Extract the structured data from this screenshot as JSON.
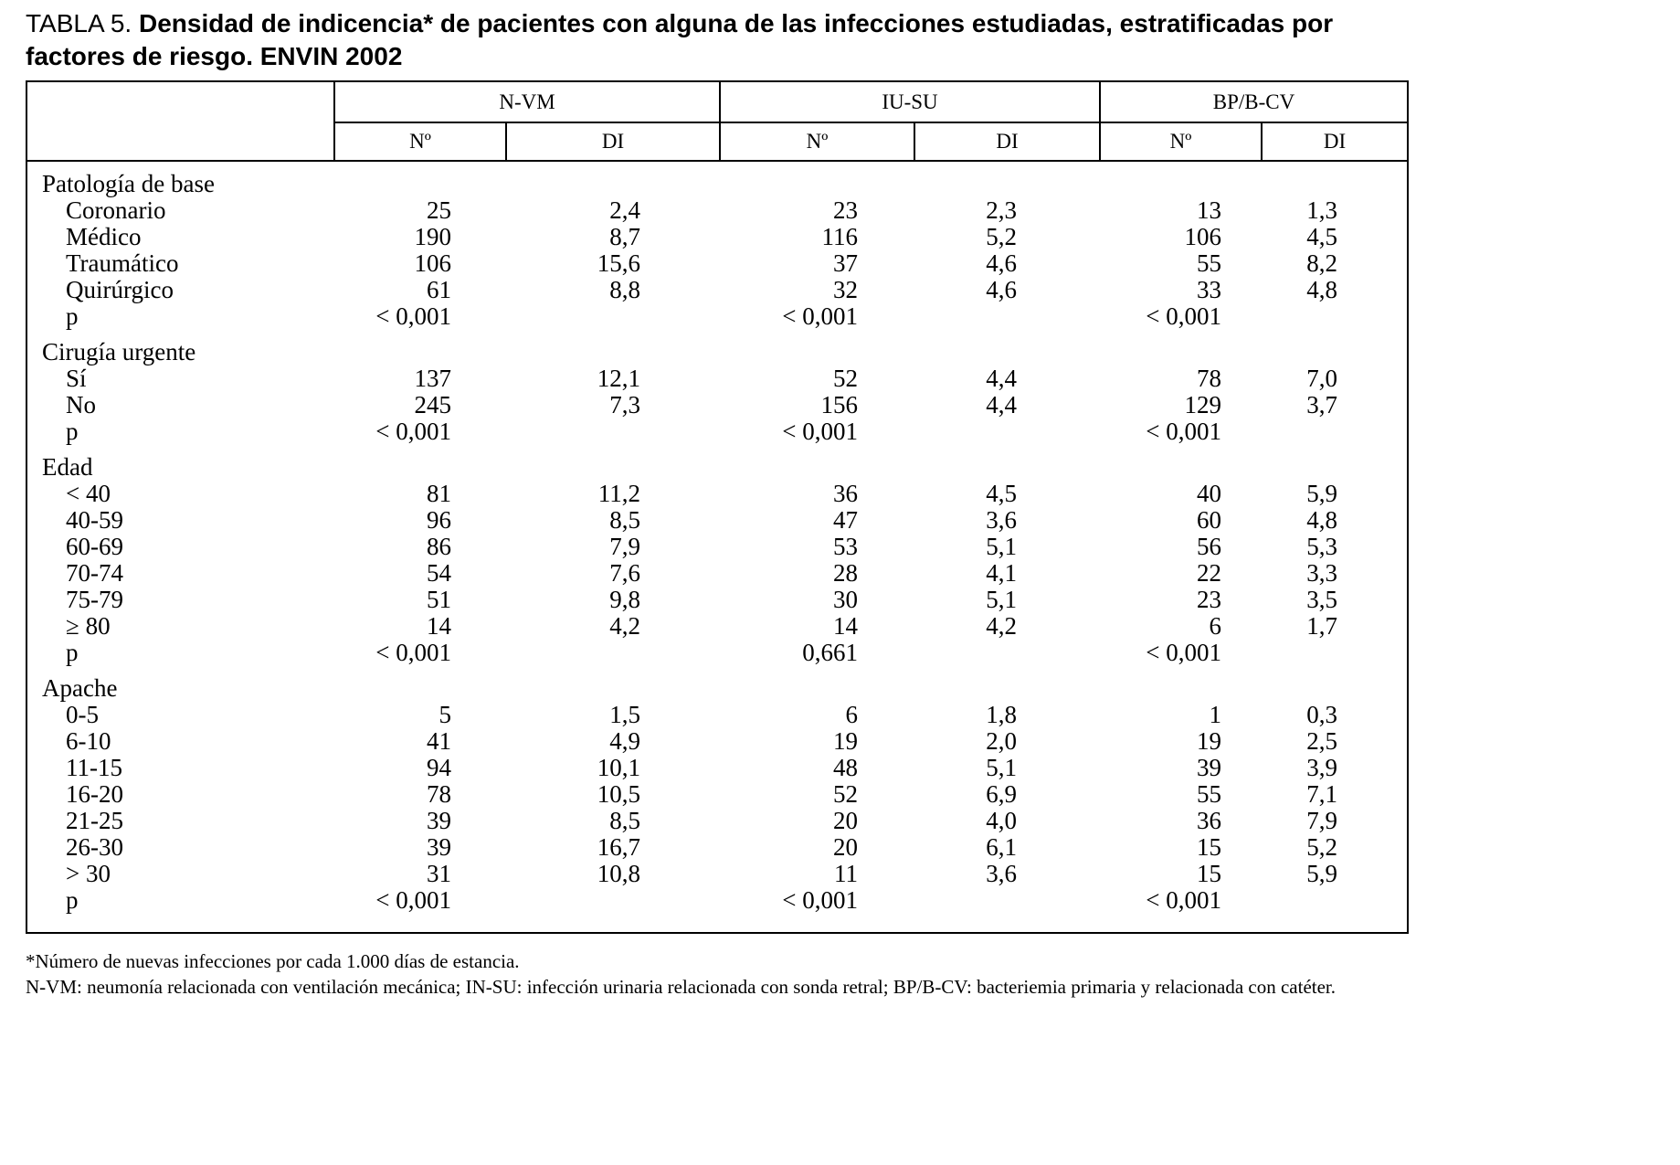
{
  "title": {
    "prefix": "TABLA 5. ",
    "text": "Densidad de indicencia* de pacientes con alguna de las infecciones estudiadas, estratificadas por factores de riesgo. ENVIN 2002"
  },
  "table": {
    "groups": [
      "N-VM",
      "IU-SU",
      "BP/B-CV"
    ],
    "sub": [
      "Nº",
      "DI"
    ],
    "rows": [
      {
        "label": "Patología de base"
      },
      {
        "label": "Coronario",
        "c": [
          "25",
          "2,4",
          "23",
          "2,3",
          "13",
          "1,3"
        ]
      },
      {
        "label": "Médico",
        "c": [
          "190",
          "8,7",
          "116",
          "5,2",
          "106",
          "4,5"
        ]
      },
      {
        "label": "Traumático",
        "c": [
          "106",
          "15,6",
          "37",
          "4,6",
          "55",
          "8,2"
        ]
      },
      {
        "label": "Quirúrgico",
        "c": [
          "61",
          "8,8",
          "32",
          "4,6",
          "33",
          "4,8"
        ]
      },
      {
        "label": "p",
        "c": [
          "< 0,001",
          "",
          "< 0,001",
          "",
          "< 0,001",
          ""
        ]
      },
      {
        "label": "Cirugía urgente"
      },
      {
        "label": "Sí",
        "c": [
          "137",
          "12,1",
          "52",
          "4,4",
          "78",
          "7,0"
        ]
      },
      {
        "label": "No",
        "c": [
          "245",
          "7,3",
          "156",
          "4,4",
          "129",
          "3,7"
        ]
      },
      {
        "label": "p",
        "c": [
          "< 0,001",
          "",
          "< 0,001",
          "",
          "< 0,001",
          ""
        ]
      },
      {
        "label": "Edad"
      },
      {
        "label": "< 40",
        "c": [
          "81",
          "11,2",
          "36",
          "4,5",
          "40",
          "5,9"
        ]
      },
      {
        "label": "40-59",
        "c": [
          "96",
          "8,5",
          "47",
          "3,6",
          "60",
          "4,8"
        ]
      },
      {
        "label": "60-69",
        "c": [
          "86",
          "7,9",
          "53",
          "5,1",
          "56",
          "5,3"
        ]
      },
      {
        "label": "70-74",
        "c": [
          "54",
          "7,6",
          "28",
          "4,1",
          "22",
          "3,3"
        ]
      },
      {
        "label": "75-79",
        "c": [
          "51",
          "9,8",
          "30",
          "5,1",
          "23",
          "3,5"
        ]
      },
      {
        "label": "≥ 80",
        "c": [
          "14",
          "4,2",
          "14",
          "4,2",
          "6",
          "1,7"
        ]
      },
      {
        "label": "p",
        "c": [
          "< 0,001",
          "",
          "0,661",
          "",
          "< 0,001",
          ""
        ]
      },
      {
        "label": "Apache"
      },
      {
        "label": "0-5",
        "c": [
          "5",
          "1,5",
          "6",
          "1,8",
          "1",
          "0,3"
        ]
      },
      {
        "label": "6-10",
        "c": [
          "41",
          "4,9",
          "19",
          "2,0",
          "19",
          "2,5"
        ]
      },
      {
        "label": "11-15",
        "c": [
          "94",
          "10,1",
          "48",
          "5,1",
          "39",
          "3,9"
        ]
      },
      {
        "label": "16-20",
        "c": [
          "78",
          "10,5",
          "52",
          "6,9",
          "55",
          "7,1"
        ]
      },
      {
        "label": "21-25",
        "c": [
          "39",
          "8,5",
          "20",
          "4,0",
          "36",
          "7,9"
        ]
      },
      {
        "label": "26-30",
        "c": [
          "39",
          "16,7",
          "20",
          "6,1",
          "15",
          "5,2"
        ]
      },
      {
        "label": "> 30",
        "c": [
          "31",
          "10,8",
          "11",
          "3,6",
          "15",
          "5,9"
        ]
      },
      {
        "label": "p",
        "c": [
          "< 0,001",
          "",
          "< 0,001",
          "",
          "< 0,001",
          ""
        ]
      }
    ]
  },
  "footnotes": [
    "*Número de nuevas infecciones por cada 1.000 días de estancia.",
    "N-VM: neumonía relacionada con ventilación mecánica; IN-SU: infección urinaria relacionada con sonda retral; BP/B-CV: bacteriemia primaria y relacionada con catéter."
  ]
}
